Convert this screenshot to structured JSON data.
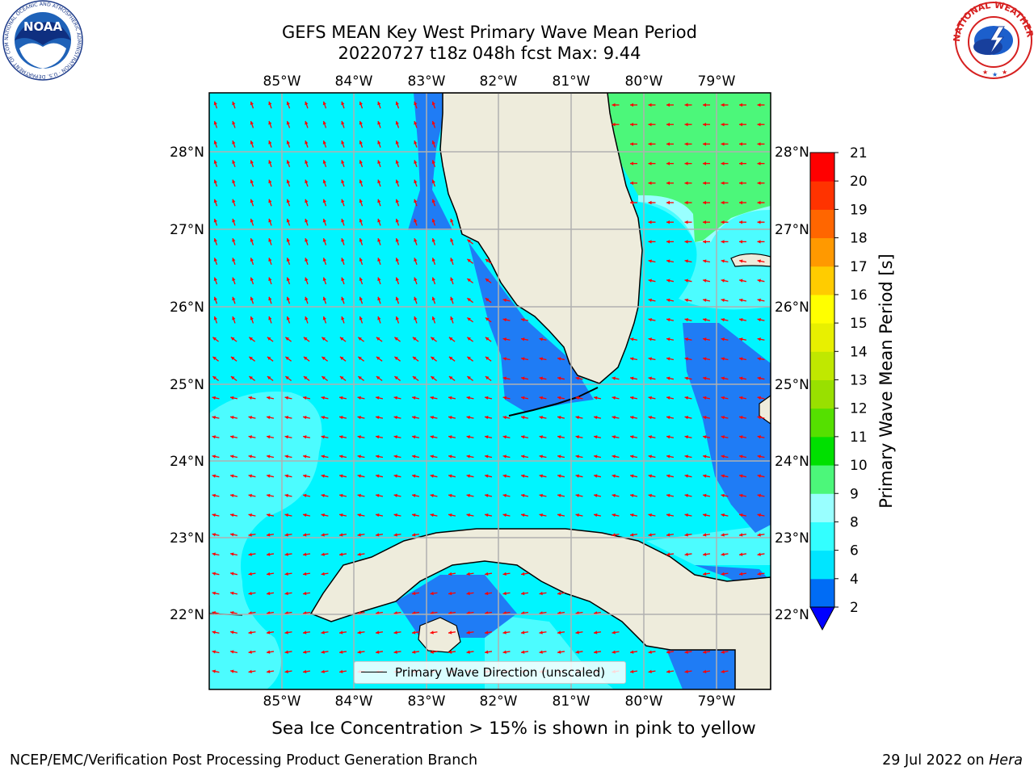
{
  "title_line1": "GEFS MEAN Key West Primary Wave Mean Period",
  "title_line2": "20220727 t18z 048h fcst   Max: 9.44",
  "note": "Sea Ice Concentration > 15% is shown in pink to yellow",
  "footer_left": "NCEP/EMC/Verification Post Processing Product Generation Branch",
  "footer_right_date": "29 Jul 2022 on ",
  "footer_right_host": "Hera",
  "legend_label": "Primary Wave Direction (unscaled)",
  "colorbar": {
    "label": "Primary Wave Mean Period [s]",
    "ticks": [
      "2",
      "4",
      "6",
      "8",
      "9",
      "10",
      "11",
      "12",
      "13",
      "14",
      "15",
      "16",
      "17",
      "18",
      "19",
      "20",
      "21"
    ],
    "colors": [
      "#0000ff",
      "#006cf5",
      "#00e5ff",
      "#33ffff",
      "#99ffff",
      "#4cf77a",
      "#00e000",
      "#55e000",
      "#99e000",
      "#c0e800",
      "#e8f000",
      "#ffff00",
      "#ffcc00",
      "#ff9900",
      "#ff6600",
      "#ff3300",
      "#ff0000"
    ]
  },
  "axes": {
    "lon_labels": [
      "85°W",
      "84°W",
      "83°W",
      "82°W",
      "81°W",
      "80°W",
      "79°W"
    ],
    "lat_labels": [
      "28°N",
      "27°N",
      "26°N",
      "25°N",
      "24°N",
      "23°N",
      "22°N"
    ]
  },
  "logos": {
    "noaa": "NOAA",
    "noaa_ring": "NATIONAL OCEANIC AND ATMOSPHERIC ADMINISTRATION · U.S. DEPARTMENT OF COMMERCE ·",
    "nws_ring": "NATIONAL WEATHER SERVICE"
  },
  "colors": {
    "land": "#eeecdc",
    "sea_base": "#00f5ff",
    "arrow": "#ff0000"
  }
}
